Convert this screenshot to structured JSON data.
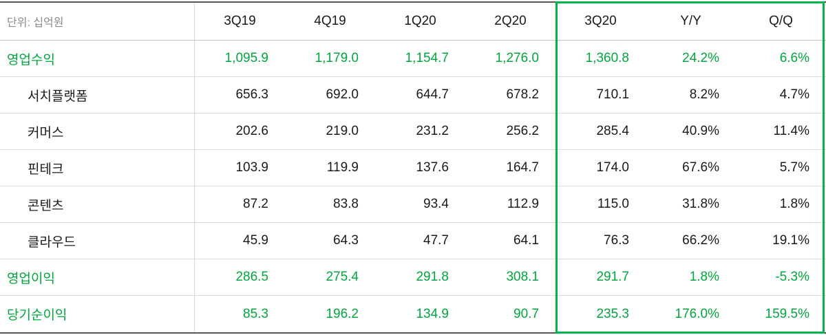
{
  "unit_label": "단위: 십억원",
  "columns": [
    "3Q19",
    "4Q19",
    "1Q20",
    "2Q20",
    "3Q20",
    "Y/Y",
    "Q/Q"
  ],
  "highlighted_columns": [
    "3Q20",
    "Y/Y",
    "Q/Q"
  ],
  "rows": [
    {
      "label": "영업수익",
      "indent": false,
      "emphasis": true,
      "values": [
        "1,095.9",
        "1,179.0",
        "1,154.7",
        "1,276.0",
        "1,360.8",
        "24.2%",
        "6.6%"
      ]
    },
    {
      "label": "서치플랫폼",
      "indent": true,
      "emphasis": false,
      "values": [
        "656.3",
        "692.0",
        "644.7",
        "678.2",
        "710.1",
        "8.2%",
        "4.7%"
      ]
    },
    {
      "label": "커머스",
      "indent": true,
      "emphasis": false,
      "values": [
        "202.6",
        "219.0",
        "231.2",
        "256.2",
        "285.4",
        "40.9%",
        "11.4%"
      ]
    },
    {
      "label": "핀테크",
      "indent": true,
      "emphasis": false,
      "values": [
        "103.9",
        "119.9",
        "137.6",
        "164.7",
        "174.0",
        "67.6%",
        "5.7%"
      ]
    },
    {
      "label": "콘텐츠",
      "indent": true,
      "emphasis": false,
      "values": [
        "87.2",
        "83.8",
        "93.4",
        "112.9",
        "115.0",
        "31.8%",
        "1.8%"
      ]
    },
    {
      "label": "클라우드",
      "indent": true,
      "emphasis": false,
      "values": [
        "45.9",
        "64.3",
        "47.7",
        "64.1",
        "76.3",
        "66.2%",
        "19.1%"
      ]
    },
    {
      "label": "영업이익",
      "indent": false,
      "emphasis": true,
      "values": [
        "286.5",
        "275.4",
        "291.8",
        "308.1",
        "291.7",
        "1.8%",
        "-5.3%"
      ]
    },
    {
      "label": "당기순이익",
      "indent": false,
      "emphasis": true,
      "values": [
        "85.3",
        "196.2",
        "134.9",
        "90.7",
        "235.3",
        "176.0%",
        "159.5%"
      ]
    }
  ],
  "colors": {
    "emphasis_green": "#00a73c",
    "highlight_border": "#00b44c",
    "text_dark": "#1a1a1a",
    "muted": "#8a8a8a",
    "row_divider": "#dcdcdc",
    "header_divider": "#c4c4c4",
    "table_edge": "#555555"
  },
  "chart_data": {
    "type": "table",
    "unit": "십억원",
    "columns": [
      "3Q19",
      "4Q19",
      "1Q20",
      "2Q20",
      "3Q20",
      "Y/Y",
      "Q/Q"
    ],
    "rows": [
      {
        "label": "영업수익",
        "values": [
          1095.9,
          1179.0,
          1154.7,
          1276.0,
          1360.8,
          "24.2%",
          "6.6%"
        ]
      },
      {
        "label": "서치플랫폼",
        "values": [
          656.3,
          692.0,
          644.7,
          678.2,
          710.1,
          "8.2%",
          "4.7%"
        ]
      },
      {
        "label": "커머스",
        "values": [
          202.6,
          219.0,
          231.2,
          256.2,
          285.4,
          "40.9%",
          "11.4%"
        ]
      },
      {
        "label": "핀테크",
        "values": [
          103.9,
          119.9,
          137.6,
          164.7,
          174.0,
          "67.6%",
          "5.7%"
        ]
      },
      {
        "label": "콘텐츠",
        "values": [
          87.2,
          83.8,
          93.4,
          112.9,
          115.0,
          "31.8%",
          "1.8%"
        ]
      },
      {
        "label": "클라우드",
        "values": [
          45.9,
          64.3,
          47.7,
          64.1,
          76.3,
          "66.2%",
          "19.1%"
        ]
      },
      {
        "label": "영업이익",
        "values": [
          286.5,
          275.4,
          291.8,
          308.1,
          291.7,
          "1.8%",
          "-5.3%"
        ]
      },
      {
        "label": "당기순이익",
        "values": [
          85.3,
          196.2,
          134.9,
          90.7,
          235.3,
          "176.0%",
          "159.5%"
        ]
      }
    ],
    "layout": {
      "highlight_box_columns": [
        "3Q20",
        "Y/Y",
        "Q/Q"
      ],
      "emphasis_rows": [
        "영업수익",
        "영업이익",
        "당기순이익"
      ]
    }
  }
}
